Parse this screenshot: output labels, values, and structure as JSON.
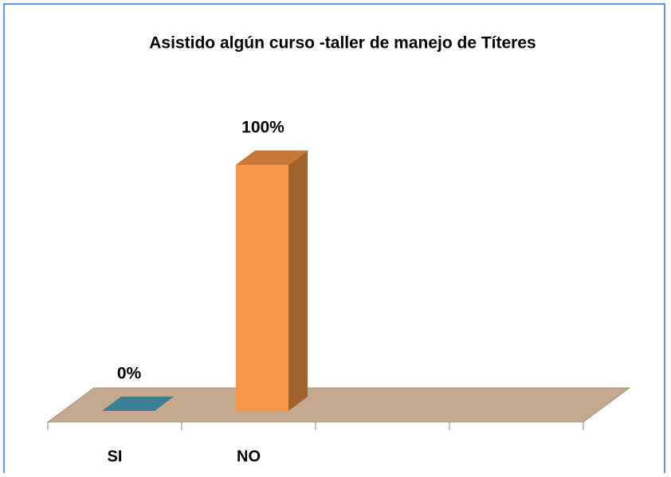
{
  "chart_data": {
    "type": "bar3d",
    "title": "Asistido algún curso -taller de manejo de Títeres",
    "categories": [
      "SI",
      "NO",
      null,
      null
    ],
    "values": [
      0,
      100,
      null,
      null
    ],
    "value_labels": [
      "0%",
      "100%",
      null,
      null
    ],
    "colors": [
      "#4bacc6",
      "#f79646",
      null,
      null
    ],
    "grid": false
  }
}
